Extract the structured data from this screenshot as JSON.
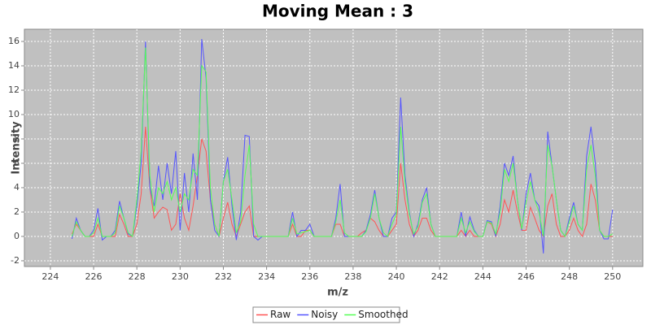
{
  "chart_data": {
    "type": "line",
    "title": "Moving Mean : 3",
    "xlabel": "m/z",
    "ylabel": "Intensity",
    "x": [
      225,
      225.2,
      225.4,
      225.6,
      225.8,
      226,
      226.2,
      226.4,
      226.6,
      226.8,
      227,
      227.2,
      227.4,
      227.6,
      227.8,
      228,
      228.2,
      228.4,
      228.6,
      228.8,
      229,
      229.2,
      229.4,
      229.6,
      229.8,
      230,
      230.2,
      230.4,
      230.6,
      230.8,
      231,
      231.2,
      231.4,
      231.6,
      231.8,
      232,
      232.2,
      232.4,
      232.6,
      232.8,
      233,
      233.2,
      233.4,
      233.6,
      233.8,
      234,
      234.2,
      234.4,
      234.6,
      234.8,
      235,
      235.2,
      235.4,
      235.6,
      235.8,
      236,
      236.2,
      236.4,
      236.6,
      236.8,
      237,
      237.2,
      237.4,
      237.6,
      237.8,
      238,
      238.2,
      238.4,
      238.6,
      238.8,
      239,
      239.2,
      239.4,
      239.6,
      239.8,
      240,
      240.2,
      240.4,
      240.6,
      240.8,
      241,
      241.2,
      241.4,
      241.6,
      241.8,
      242,
      242.2,
      242.4,
      242.6,
      242.8,
      243,
      243.2,
      243.4,
      243.6,
      243.8,
      244,
      244.2,
      244.4,
      244.6,
      244.8,
      245,
      245.2,
      245.4,
      245.6,
      245.8,
      246,
      246.2,
      246.4,
      246.6,
      246.8,
      247,
      247.2,
      247.4,
      247.6,
      247.8,
      248,
      248.2,
      248.4,
      248.6,
      248.8,
      249,
      249.2,
      249.4,
      249.6,
      249.8,
      250
    ],
    "series": [
      {
        "name": "Raw",
        "color": "#ff5555",
        "values": [
          0.2,
          1,
          0.5,
          0,
          0,
          0,
          1,
          0,
          0,
          0,
          0,
          1.8,
          1,
          0,
          0,
          1,
          3.5,
          9,
          4,
          1.5,
          2,
          2.4,
          2.2,
          0.5,
          1,
          3.5,
          1.5,
          0.5,
          2.5,
          5,
          8,
          7,
          3,
          1,
          0,
          1.5,
          2.8,
          1,
          0,
          1,
          2,
          2.5,
          0,
          0,
          0,
          0,
          0,
          0,
          0,
          0,
          0,
          1,
          0,
          0,
          0.5,
          0.5,
          0,
          0,
          0,
          0,
          0,
          1,
          1,
          0,
          0,
          0,
          0,
          0.3,
          0.5,
          1.5,
          1.2,
          0.5,
          0,
          0,
          0.5,
          1,
          6,
          3,
          1,
          0,
          0.5,
          1.5,
          1.5,
          0.5,
          0,
          0,
          0,
          0,
          0,
          0,
          0.5,
          0,
          0.5,
          0,
          0,
          0,
          1.2,
          1,
          0,
          1,
          3,
          2,
          3.8,
          2,
          0.5,
          0.5,
          2.4,
          1.5,
          0.5,
          0,
          2.5,
          3.5,
          1,
          0,
          0,
          0.5,
          1.5,
          0.5,
          0,
          1,
          4.3,
          3,
          0.5,
          0,
          0,
          0
        ]
      },
      {
        "name": "Noisy",
        "color": "#5555ff",
        "values": [
          -0.2,
          1.5,
          0.5,
          0,
          0,
          0.5,
          2.3,
          -0.3,
          0,
          0,
          0.5,
          2.9,
          1.5,
          0.2,
          0,
          2.5,
          6,
          16,
          4,
          2.5,
          5.8,
          3,
          6,
          3.5,
          7,
          0.5,
          5.2,
          2,
          6.8,
          3,
          16.2,
          13,
          3,
          0.5,
          0,
          4.5,
          6.5,
          2.5,
          -0.3,
          2,
          8.3,
          8.2,
          0,
          -0.3,
          0,
          0,
          0,
          0,
          0,
          0,
          0,
          2,
          0,
          0.5,
          0.5,
          1,
          0,
          0,
          0,
          0,
          0,
          1.5,
          4.3,
          0,
          0,
          0,
          0,
          0,
          0.5,
          1.8,
          3.8,
          1.5,
          0,
          0,
          1.5,
          2,
          11.4,
          5,
          2,
          0,
          1,
          3,
          4,
          1,
          0,
          0,
          0,
          0,
          0,
          0,
          2,
          0,
          1.6,
          0.5,
          0,
          0,
          1.3,
          1.2,
          0,
          2.5,
          6,
          5,
          6.6,
          3,
          0.5,
          3.5,
          5.2,
          3,
          2.5,
          -1.4,
          8.6,
          5.8,
          3,
          0.5,
          0,
          1.5,
          2.8,
          1,
          0.5,
          6.6,
          9,
          6,
          0.5,
          -0.2,
          -0.2,
          2.2
        ]
      },
      {
        "name": "Smoothed",
        "color": "#55ff55",
        "values": [
          0,
          1.2,
          0.5,
          0,
          0,
          0.3,
          1.5,
          0,
          0,
          0,
          0.3,
          2.5,
          1.5,
          0.3,
          0,
          3,
          7,
          15.5,
          5,
          2,
          4,
          3.5,
          4.5,
          3,
          4,
          2,
          3.5,
          3,
          5.5,
          5,
          14,
          13.5,
          4,
          1,
          0,
          4.5,
          5.5,
          3,
          0.3,
          1.2,
          5,
          7.5,
          1,
          0,
          0,
          0,
          0,
          0,
          0,
          0,
          0,
          1.5,
          0.2,
          0.3,
          0.4,
          0.5,
          0,
          0,
          0,
          0,
          0,
          1.2,
          3,
          0.3,
          0,
          0,
          0,
          0,
          0.4,
          1.5,
          3.5,
          1.5,
          0.3,
          0,
          1,
          1.8,
          9,
          4.5,
          1.8,
          0.2,
          0.8,
          2.8,
          3.5,
          1,
          0,
          0,
          0,
          0,
          0,
          0,
          1.5,
          0.3,
          1.2,
          0.4,
          0,
          0,
          1.2,
          1.1,
          0.2,
          2,
          5.5,
          4.5,
          6,
          3,
          0.6,
          2.8,
          4.5,
          3,
          2,
          0,
          7.5,
          5.8,
          3,
          0.5,
          0,
          1.2,
          2.5,
          1,
          0.5,
          5.5,
          7.5,
          5,
          0.5,
          0,
          0,
          0.2
        ]
      }
    ],
    "xlim": [
      222.8,
      251.4
    ],
    "xticks": [
      224,
      226,
      228,
      230,
      232,
      234,
      236,
      238,
      240,
      242,
      244,
      246,
      248,
      250
    ],
    "ylim": [
      -2.47,
      17
    ],
    "yticks": [
      -2,
      0,
      2,
      4,
      6,
      8,
      10,
      12,
      14,
      16
    ],
    "grid": true,
    "legend": "bottom"
  }
}
